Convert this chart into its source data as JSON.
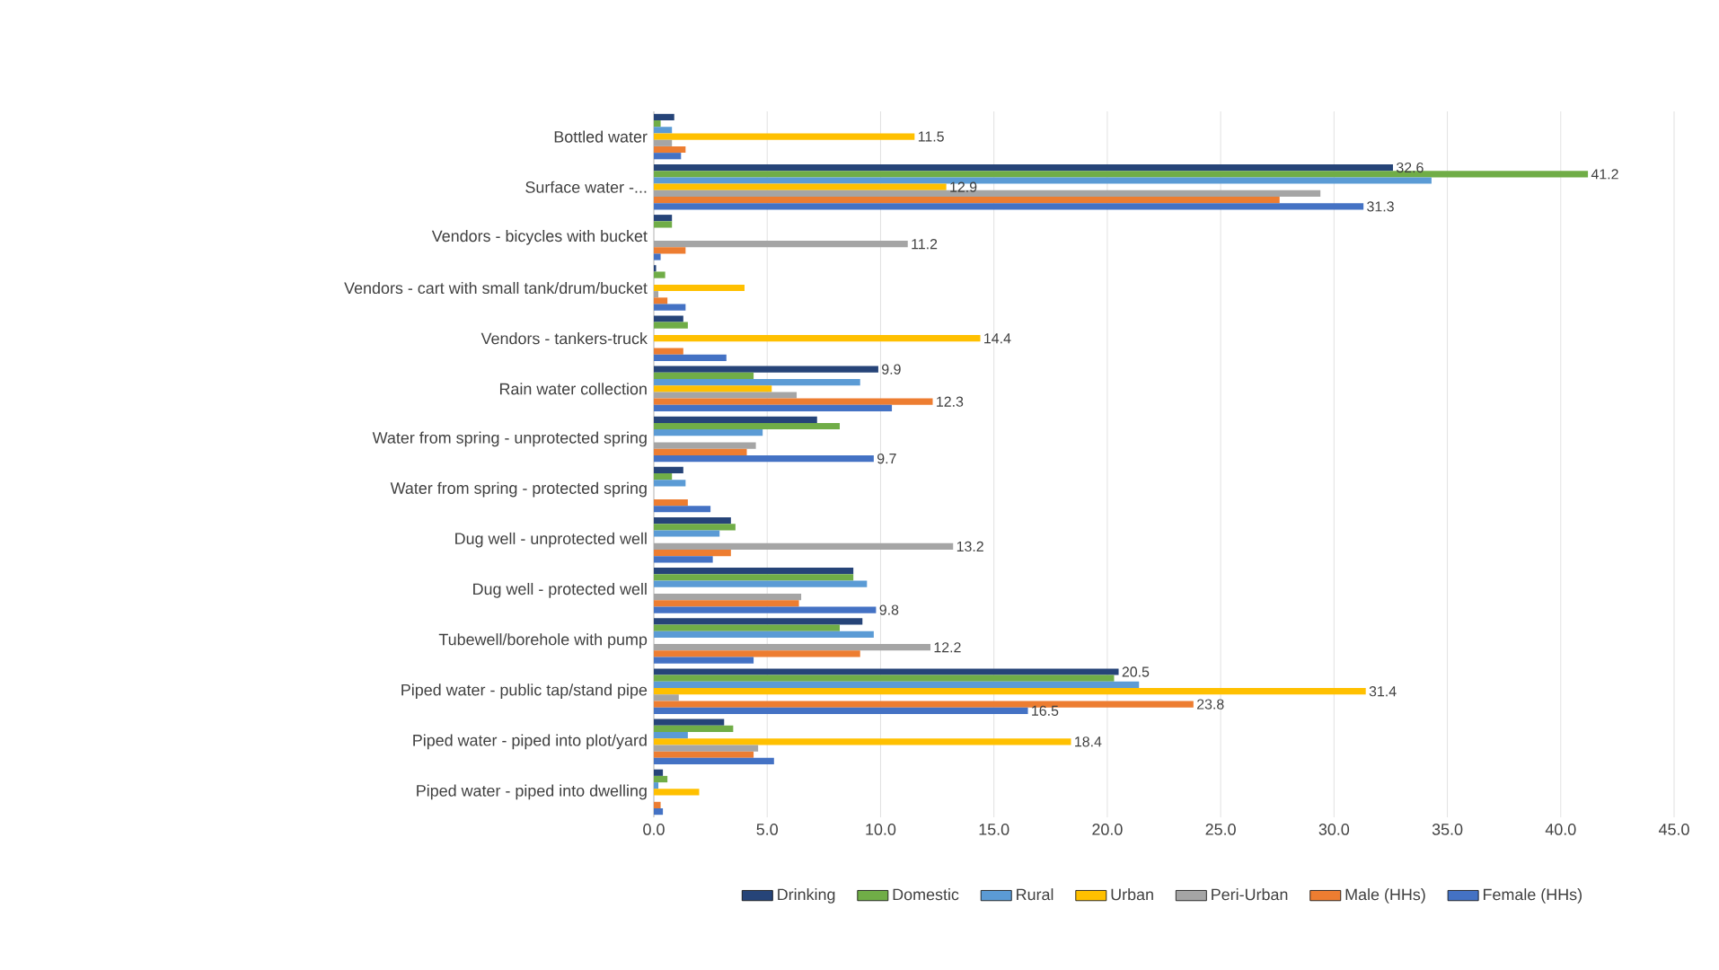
{
  "chart_data": {
    "type": "bar",
    "orientation": "horizontal",
    "categories": [
      "Bottled water",
      "Surface water -...",
      "Vendors - bicycles with bucket",
      "Vendors - cart with small tank/drum/bucket",
      "Vendors - tankers-truck",
      "Rain water collection",
      "Water from spring - unprotected spring",
      "Water from spring - protected spring",
      "Dug well - unprotected well",
      "Dug well - protected well",
      "Tubewell/borehole with pump",
      "Piped water - public tap/stand pipe",
      "Piped water - piped into plot/yard",
      "Piped water - piped into dwelling"
    ],
    "series": [
      {
        "name": "Drinking",
        "color": "#264478",
        "values": [
          0.9,
          32.6,
          0.8,
          0.1,
          1.3,
          9.9,
          7.2,
          1.3,
          3.4,
          8.8,
          9.2,
          20.5,
          3.1,
          0.4
        ],
        "value_labels": [
          null,
          "32.6",
          null,
          null,
          null,
          "9.9",
          null,
          null,
          null,
          null,
          null,
          "20.5",
          null,
          null
        ]
      },
      {
        "name": "Domestic",
        "color": "#70ad47",
        "values": [
          0.3,
          41.2,
          0.8,
          0.5,
          1.5,
          4.4,
          8.2,
          0.8,
          3.6,
          8.8,
          8.2,
          20.3,
          3.5,
          0.6
        ],
        "value_labels": [
          null,
          "41.2",
          null,
          null,
          null,
          null,
          null,
          null,
          null,
          null,
          null,
          null,
          null,
          null
        ]
      },
      {
        "name": "Rural",
        "color": "#5b9bd5",
        "values": [
          0.8,
          34.3,
          0.0,
          0.0,
          0.0,
          9.1,
          4.8,
          1.4,
          2.9,
          9.4,
          9.7,
          21.4,
          1.5,
          0.2
        ]
      },
      {
        "name": "Urban",
        "color": "#ffc000",
        "values": [
          11.5,
          12.9,
          0.0,
          4.0,
          14.4,
          5.2,
          0.0,
          0.0,
          0.0,
          0.0,
          0.0,
          31.4,
          18.4,
          2.0
        ],
        "value_labels": [
          "11.5",
          "12.9",
          null,
          null,
          "14.4",
          null,
          null,
          null,
          null,
          null,
          null,
          "31.4",
          "18.4",
          null
        ]
      },
      {
        "name": "Peri-Urban",
        "color": "#a5a5a5",
        "values": [
          0.8,
          29.4,
          11.2,
          0.2,
          0.0,
          6.3,
          4.5,
          0.0,
          13.2,
          6.5,
          12.2,
          1.1,
          4.6,
          0.0
        ],
        "value_labels": [
          null,
          null,
          "11.2",
          null,
          null,
          null,
          null,
          null,
          "13.2",
          null,
          "12.2",
          null,
          null,
          null
        ]
      },
      {
        "name": "Male (HHs)",
        "color": "#ed7d31",
        "values": [
          1.4,
          27.6,
          1.4,
          0.6,
          1.3,
          12.3,
          4.1,
          1.5,
          3.4,
          6.4,
          9.1,
          23.8,
          4.4,
          0.3
        ],
        "value_labels": [
          null,
          null,
          null,
          null,
          null,
          "12.3",
          null,
          null,
          null,
          null,
          null,
          "23.8",
          null,
          null
        ]
      },
      {
        "name": "Female (HHs)",
        "color": "#4472c4",
        "values": [
          1.2,
          31.3,
          0.3,
          1.4,
          3.2,
          10.5,
          9.7,
          2.5,
          2.6,
          9.8,
          4.4,
          16.5,
          5.3,
          0.4
        ],
        "value_labels": [
          null,
          "31.3",
          null,
          null,
          null,
          null,
          "9.7",
          null,
          null,
          "9.8",
          null,
          "16.5",
          null,
          null
        ]
      }
    ],
    "xlim": [
      0,
      45
    ],
    "xticks": [
      {
        "value": 0,
        "label": "0.0"
      },
      {
        "value": 5,
        "label": "5.0"
      },
      {
        "value": 10,
        "label": "10.0"
      },
      {
        "value": 15,
        "label": "15.0"
      },
      {
        "value": 20,
        "label": "20.0"
      },
      {
        "value": 25,
        "label": "25.0"
      },
      {
        "value": 30,
        "label": "30.0"
      },
      {
        "value": 35,
        "label": "35.0"
      },
      {
        "value": 40,
        "label": "40.0"
      },
      {
        "value": 45,
        "label": "45.0"
      }
    ],
    "grid": "x",
    "legend": "bottom"
  }
}
